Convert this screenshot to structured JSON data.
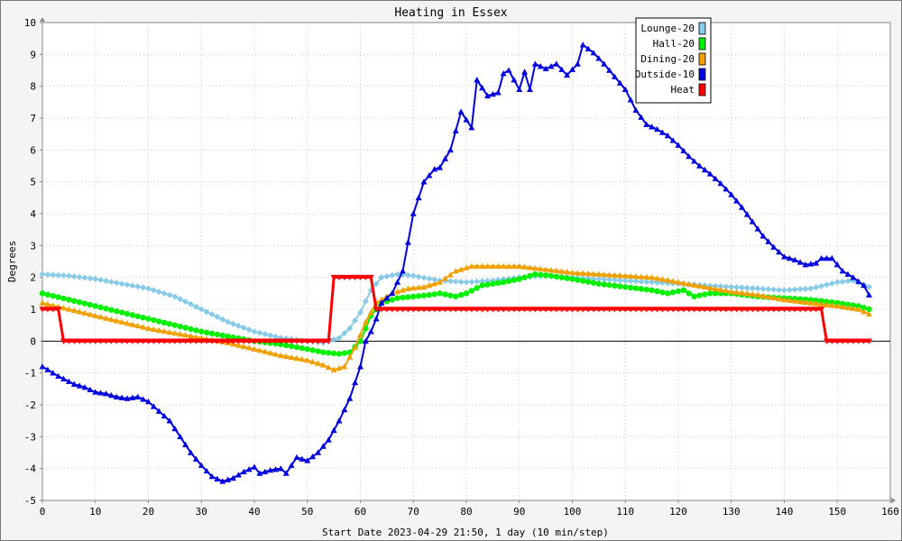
{
  "chart_data": {
    "type": "line",
    "title": "Heating in Essex",
    "xlabel": "Start Date 2023-04-29 21:50, 1 day (10 min/step)",
    "ylabel": "Degrees",
    "xlim": [
      0,
      160
    ],
    "ylim": [
      -5,
      10
    ],
    "x_ticks": [
      "0",
      "10",
      "20",
      "30",
      "40",
      "50",
      "60",
      "70",
      "80",
      "90",
      "100",
      "110",
      "120",
      "130",
      "140",
      "150",
      "160"
    ],
    "y_ticks": [
      "-5",
      "-4",
      "-3",
      "-2",
      "-1",
      "0",
      "1",
      "2",
      "3",
      "4",
      "5",
      "6",
      "7",
      "8",
      "9",
      "10"
    ],
    "grid": true,
    "legend_position": "top-right",
    "series": [
      {
        "name": "Lounge-20",
        "color": "#87cbe8",
        "marker": "diamond",
        "points": [
          [
            0,
            2.1
          ],
          [
            5,
            2.05
          ],
          [
            10,
            1.95
          ],
          [
            15,
            1.8
          ],
          [
            20,
            1.65
          ],
          [
            25,
            1.4
          ],
          [
            30,
            1.0
          ],
          [
            35,
            0.6
          ],
          [
            40,
            0.3
          ],
          [
            45,
            0.1
          ],
          [
            50,
            0.0
          ],
          [
            53,
            -0.05
          ],
          [
            56,
            0.1
          ],
          [
            58,
            0.4
          ],
          [
            60,
            0.9
          ],
          [
            62,
            1.6
          ],
          [
            64,
            2.0
          ],
          [
            67,
            2.1
          ],
          [
            70,
            2.05
          ],
          [
            75,
            1.9
          ],
          [
            80,
            1.85
          ],
          [
            85,
            1.9
          ],
          [
            90,
            2.0
          ],
          [
            95,
            2.05
          ],
          [
            100,
            2.0
          ],
          [
            105,
            1.95
          ],
          [
            110,
            1.9
          ],
          [
            115,
            1.85
          ],
          [
            120,
            1.8
          ],
          [
            125,
            1.75
          ],
          [
            130,
            1.7
          ],
          [
            135,
            1.65
          ],
          [
            140,
            1.6
          ],
          [
            145,
            1.65
          ],
          [
            150,
            1.85
          ],
          [
            153,
            1.9
          ],
          [
            156,
            1.7
          ]
        ]
      },
      {
        "name": "Hall-20",
        "color": "#00f000",
        "marker": "circle",
        "points": [
          [
            0,
            1.5
          ],
          [
            5,
            1.3
          ],
          [
            10,
            1.1
          ],
          [
            15,
            0.9
          ],
          [
            20,
            0.7
          ],
          [
            25,
            0.5
          ],
          [
            30,
            0.3
          ],
          [
            35,
            0.15
          ],
          [
            40,
            0.0
          ],
          [
            45,
            -0.1
          ],
          [
            50,
            -0.25
          ],
          [
            53,
            -0.35
          ],
          [
            56,
            -0.4
          ],
          [
            58,
            -0.35
          ],
          [
            60,
            0.0
          ],
          [
            62,
            0.8
          ],
          [
            64,
            1.2
          ],
          [
            67,
            1.35
          ],
          [
            70,
            1.4
          ],
          [
            73,
            1.45
          ],
          [
            75,
            1.5
          ],
          [
            78,
            1.4
          ],
          [
            80,
            1.5
          ],
          [
            83,
            1.75
          ],
          [
            87,
            1.85
          ],
          [
            90,
            1.95
          ],
          [
            93,
            2.1
          ],
          [
            96,
            2.05
          ],
          [
            100,
            1.95
          ],
          [
            105,
            1.8
          ],
          [
            110,
            1.7
          ],
          [
            115,
            1.6
          ],
          [
            118,
            1.5
          ],
          [
            121,
            1.6
          ],
          [
            123,
            1.4
          ],
          [
            126,
            1.5
          ],
          [
            130,
            1.5
          ],
          [
            135,
            1.4
          ],
          [
            140,
            1.35
          ],
          [
            145,
            1.3
          ],
          [
            150,
            1.2
          ],
          [
            154,
            1.1
          ],
          [
            156,
            1.0
          ]
        ]
      },
      {
        "name": "Dining-20",
        "color": "#f0a000",
        "marker": "triangle-up",
        "points": [
          [
            0,
            1.2
          ],
          [
            5,
            1.0
          ],
          [
            10,
            0.8
          ],
          [
            15,
            0.6
          ],
          [
            20,
            0.4
          ],
          [
            25,
            0.25
          ],
          [
            30,
            0.1
          ],
          [
            35,
            -0.05
          ],
          [
            40,
            -0.25
          ],
          [
            45,
            -0.45
          ],
          [
            50,
            -0.6
          ],
          [
            53,
            -0.75
          ],
          [
            55,
            -0.9
          ],
          [
            57,
            -0.8
          ],
          [
            59,
            -0.2
          ],
          [
            61,
            0.6
          ],
          [
            63,
            1.2
          ],
          [
            66,
            1.5
          ],
          [
            69,
            1.65
          ],
          [
            72,
            1.7
          ],
          [
            75,
            1.85
          ],
          [
            78,
            2.2
          ],
          [
            81,
            2.35
          ],
          [
            85,
            2.35
          ],
          [
            90,
            2.35
          ],
          [
            95,
            2.25
          ],
          [
            100,
            2.15
          ],
          [
            105,
            2.1
          ],
          [
            110,
            2.05
          ],
          [
            115,
            2.0
          ],
          [
            120,
            1.85
          ],
          [
            125,
            1.7
          ],
          [
            130,
            1.55
          ],
          [
            135,
            1.45
          ],
          [
            140,
            1.3
          ],
          [
            145,
            1.2
          ],
          [
            150,
            1.1
          ],
          [
            154,
            1.0
          ],
          [
            156,
            0.85
          ]
        ]
      },
      {
        "name": "Outside-10",
        "color": "#0000e0",
        "marker": "triangle-up",
        "points": [
          [
            0,
            -0.8
          ],
          [
            3,
            -1.1
          ],
          [
            6,
            -1.35
          ],
          [
            8,
            -1.45
          ],
          [
            10,
            -1.6
          ],
          [
            12,
            -1.65
          ],
          [
            14,
            -1.75
          ],
          [
            16,
            -1.8
          ],
          [
            18,
            -1.75
          ],
          [
            20,
            -1.9
          ],
          [
            22,
            -2.2
          ],
          [
            24,
            -2.5
          ],
          [
            26,
            -3.0
          ],
          [
            28,
            -3.5
          ],
          [
            30,
            -3.9
          ],
          [
            32,
            -4.25
          ],
          [
            34,
            -4.4
          ],
          [
            36,
            -4.3
          ],
          [
            38,
            -4.1
          ],
          [
            40,
            -3.95
          ],
          [
            41,
            -4.15
          ],
          [
            43,
            -4.05
          ],
          [
            45,
            -4.0
          ],
          [
            46,
            -4.15
          ],
          [
            48,
            -3.65
          ],
          [
            50,
            -3.75
          ],
          [
            52,
            -3.5
          ],
          [
            54,
            -3.1
          ],
          [
            56,
            -2.5
          ],
          [
            58,
            -1.8
          ],
          [
            60,
            -0.8
          ],
          [
            61,
            0.0
          ],
          [
            62,
            0.3
          ],
          [
            63,
            0.7
          ],
          [
            64,
            1.2
          ],
          [
            66,
            1.5
          ],
          [
            68,
            2.2
          ],
          [
            70,
            4.0
          ],
          [
            72,
            5.0
          ],
          [
            74,
            5.4
          ],
          [
            75,
            5.45
          ],
          [
            77,
            6.0
          ],
          [
            79,
            7.2
          ],
          [
            81,
            6.7
          ],
          [
            82,
            8.2
          ],
          [
            84,
            7.7
          ],
          [
            86,
            7.8
          ],
          [
            87,
            8.4
          ],
          [
            88,
            8.5
          ],
          [
            90,
            7.9
          ],
          [
            91,
            8.45
          ],
          [
            92,
            7.9
          ],
          [
            93,
            8.7
          ],
          [
            95,
            8.55
          ],
          [
            97,
            8.7
          ],
          [
            99,
            8.35
          ],
          [
            101,
            8.7
          ],
          [
            102,
            9.3
          ],
          [
            104,
            9.05
          ],
          [
            106,
            8.7
          ],
          [
            108,
            8.3
          ],
          [
            110,
            7.9
          ],
          [
            112,
            7.25
          ],
          [
            114,
            6.8
          ],
          [
            116,
            6.65
          ],
          [
            118,
            6.45
          ],
          [
            120,
            6.15
          ],
          [
            122,
            5.8
          ],
          [
            124,
            5.5
          ],
          [
            126,
            5.25
          ],
          [
            128,
            4.95
          ],
          [
            130,
            4.6
          ],
          [
            132,
            4.2
          ],
          [
            134,
            3.75
          ],
          [
            136,
            3.3
          ],
          [
            138,
            2.95
          ],
          [
            140,
            2.65
          ],
          [
            142,
            2.55
          ],
          [
            144,
            2.4
          ],
          [
            146,
            2.45
          ],
          [
            147,
            2.6
          ],
          [
            149,
            2.6
          ],
          [
            151,
            2.2
          ],
          [
            153,
            2.0
          ],
          [
            155,
            1.75
          ],
          [
            156,
            1.45
          ]
        ]
      },
      {
        "name": "Heat",
        "color": "#ff0000",
        "marker": "triangle-down",
        "points": [
          [
            0,
            1.0
          ],
          [
            3,
            1.0
          ],
          [
            4,
            0.0
          ],
          [
            54,
            0.0
          ],
          [
            55,
            2.0
          ],
          [
            62,
            2.0
          ],
          [
            63,
            1.0
          ],
          [
            147,
            1.0
          ],
          [
            148,
            0.0
          ],
          [
            156,
            0.0
          ]
        ]
      }
    ]
  }
}
